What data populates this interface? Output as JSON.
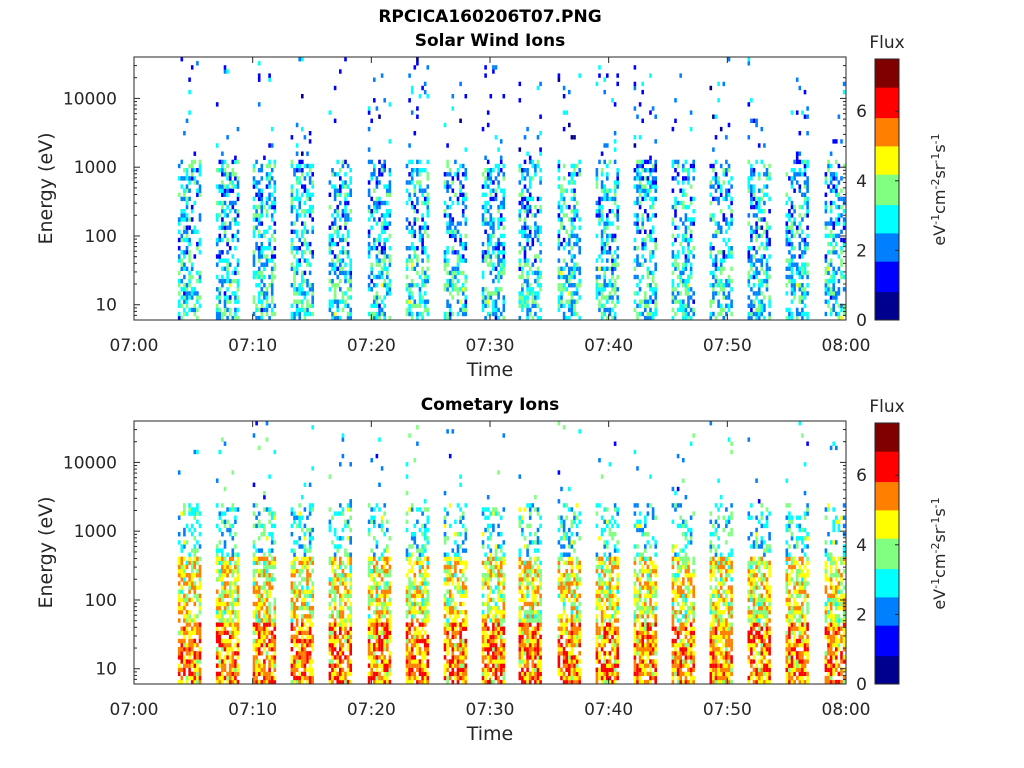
{
  "figure_title": "RPCICA160206T07.PNG",
  "colormap": [
    "#00008F",
    "#0000FF",
    "#0080FF",
    "#00FFFF",
    "#80FF80",
    "#FFFF00",
    "#FF8000",
    "#FF0000",
    "#800000"
  ],
  "chart_data": [
    {
      "type": "heatmap",
      "title": "Solar Wind Ions",
      "xlabel": "Time",
      "ylabel": "Energy (eV)",
      "x_ticks": [
        "07:00",
        "07:10",
        "07:20",
        "07:30",
        "07:40",
        "07:50",
        "08:00"
      ],
      "x_range_minutes": [
        0,
        60
      ],
      "y_scale": "log",
      "y_ticks": [
        "10",
        "100",
        "1000",
        "10000"
      ],
      "y_range_eV": [
        6,
        40000
      ],
      "colorbar": {
        "title": "Flux",
        "label": "eV-1cm-2sr-1s-1",
        "ticks": [
          "0",
          "2",
          "4",
          "6"
        ],
        "range": [
          0,
          7.5
        ]
      },
      "scan_start_minutes": [
        3.7,
        6.9,
        10.0,
        13.2,
        16.4,
        19.7,
        22.9,
        26.1,
        29.3,
        32.4,
        35.7,
        38.9,
        42.1,
        45.3,
        48.5,
        51.7,
        54.9,
        58.2
      ],
      "typical_flux_level": 2.5
    },
    {
      "type": "heatmap",
      "title": "Cometary Ions",
      "xlabel": "Time",
      "ylabel": "Energy (eV)",
      "x_ticks": [
        "07:00",
        "07:10",
        "07:20",
        "07:30",
        "07:40",
        "07:50",
        "08:00"
      ],
      "x_range_minutes": [
        0,
        60
      ],
      "y_scale": "log",
      "y_ticks": [
        "10",
        "100",
        "1000",
        "10000"
      ],
      "y_range_eV": [
        6,
        40000
      ],
      "colorbar": {
        "title": "Flux",
        "label": "eV-1cm-2sr-1s-1",
        "ticks": [
          "0",
          "2",
          "4",
          "6"
        ],
        "range": [
          0,
          7.5
        ]
      },
      "scan_start_minutes": [
        3.7,
        6.9,
        10.0,
        13.2,
        16.4,
        19.7,
        22.9,
        26.1,
        29.3,
        32.4,
        35.7,
        38.9,
        42.1,
        45.3,
        48.5,
        51.7,
        54.9,
        58.2
      ],
      "typical_flux_level": 4.5
    }
  ]
}
